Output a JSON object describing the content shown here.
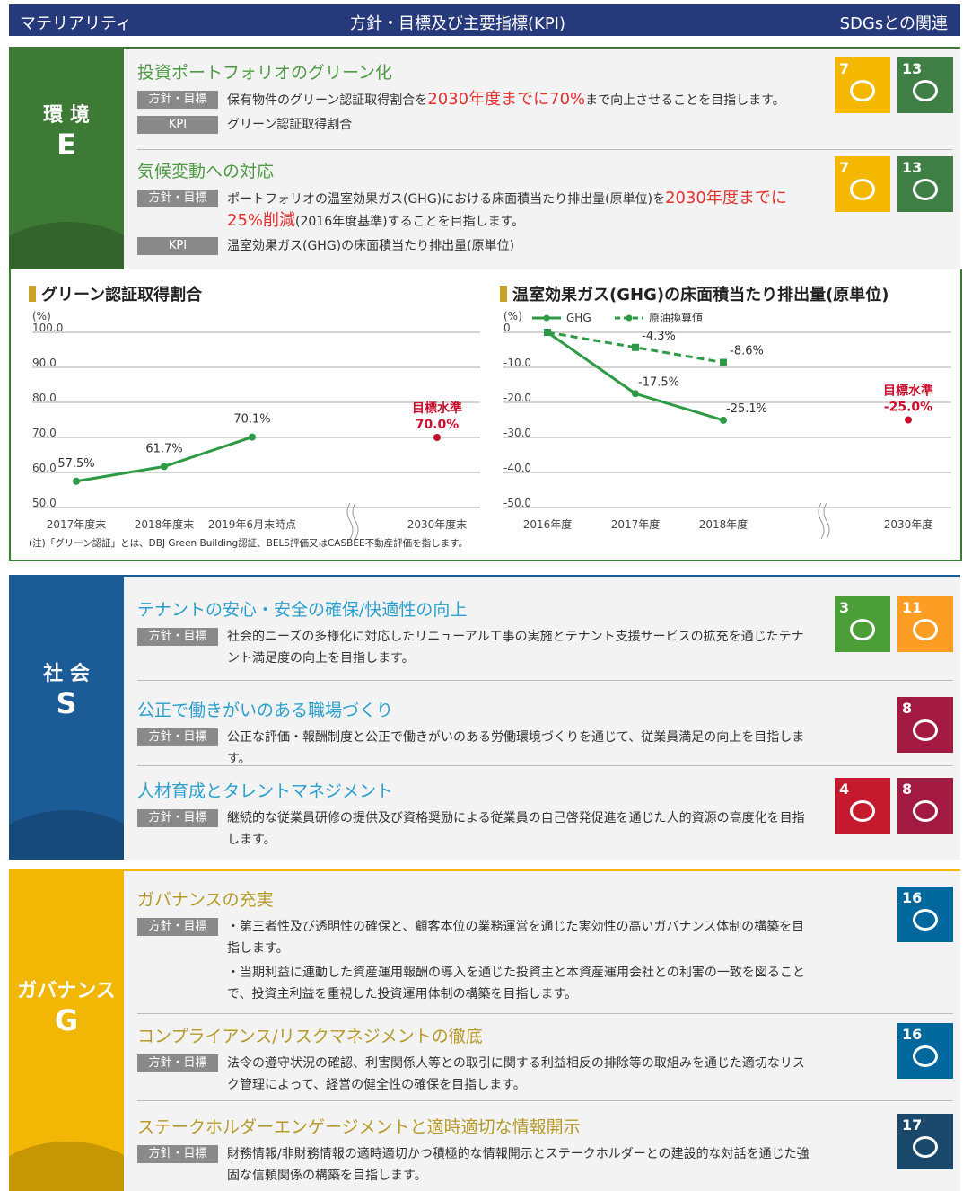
{
  "header": {
    "materiality": "マテリアリティ",
    "policy": "方針・目標及び主要指標(KPI)",
    "sdgs": "SDGsとの関連"
  },
  "sections": [
    {
      "label": "環 境",
      "letter": "E",
      "color": "#3d7a35",
      "title_color": "#4f9a45",
      "items": [
        {
          "title": "投資ポートフォリオのグリーン化",
          "rows": [
            {
              "tag": "方針・目標",
              "parts": [
                {
                  "text": "保有物件のグリーン認証取得割合を"
                },
                {
                  "text": "2030年度までに70%",
                  "em": true
                },
                {
                  "text": "まで向上させることを目指します。"
                }
              ]
            },
            {
              "tag": "KPI",
              "parts": [
                {
                  "text": "グリーン認証取得割合"
                }
              ]
            }
          ],
          "sdgs": [
            {
              "number": 7,
              "color": "#f5b800"
            },
            {
              "number": 13,
              "color": "#3f7e44"
            }
          ]
        },
        {
          "title": "気候変動への対応",
          "rows": [
            {
              "tag": "方針・目標",
              "parts": [
                {
                  "text": "ポートフォリオの温室効果ガス(GHG)における床面積当たり排出量(原単位)を"
                },
                {
                  "text": "2030年度までに25%削減",
                  "em": true
                },
                {
                  "text": "(2016年度基準)することを目指します。"
                }
              ]
            },
            {
              "tag": "KPI",
              "parts": [
                {
                  "text": "温室効果ガス(GHG)の床面積当たり排出量(原単位)"
                }
              ]
            }
          ],
          "sdgs": [
            {
              "number": 7,
              "color": "#f5b800"
            },
            {
              "number": 13,
              "color": "#3f7e44"
            }
          ]
        }
      ]
    },
    {
      "label": "社 会",
      "letter": "S",
      "color": "#1b5b96",
      "title_color": "#2b9fcc",
      "items": [
        {
          "title": "テナントの安心・安全の確保/快適性の向上",
          "rows": [
            {
              "tag": "方針・目標",
              "parts": [
                {
                  "text": "社会的ニーズの多様化に対応したリニューアル工事の実施とテナント支援サービスの拡充を通じたテナント満足度の向上を目指します。"
                }
              ]
            }
          ],
          "sdgs": [
            {
              "number": 3,
              "color": "#4c9f38"
            },
            {
              "number": 11,
              "color": "#fd9d24"
            }
          ]
        },
        {
          "title": "公正で働きがいのある職場づくり",
          "rows": [
            {
              "tag": "方針・目標",
              "parts": [
                {
                  "text": "公正な評価・報酬制度と公正で働きがいのある労働環境づくりを通じて、従業員満足の向上を目指します。"
                }
              ]
            }
          ],
          "sdgs": [
            {
              "number": 8,
              "color": "#a21942"
            }
          ]
        },
        {
          "title": "人材育成とタレントマネジメント",
          "rows": [
            {
              "tag": "方針・目標",
              "parts": [
                {
                  "text": "継続的な従業員研修の提供及び資格奨励による従業員の自己啓発促進を通じた人的資源の高度化を目指します。"
                }
              ]
            }
          ],
          "sdgs": [
            {
              "number": 4,
              "color": "#c5192d"
            },
            {
              "number": 8,
              "color": "#a21942"
            }
          ]
        }
      ]
    },
    {
      "label": "ガバナンス",
      "letter": "G",
      "color": "#f2b705",
      "title_color": "#b59a2a",
      "items": [
        {
          "title": "ガバナンスの充実",
          "rows": [
            {
              "tag": "方針・目標",
              "parts": [
                {
                  "text": "・第三者性及び透明性の確保と、顧客本位の業務運営を通じた実効性の高いガバナンス体制の構築を目指します。"
                }
              ]
            },
            {
              "parts": [
                {
                  "text": "・当期利益に連動した資産運用報酬の導入を通じた投資主と本資産運用会社との利害の一致を図ることで、投資主利益を重視した投資運用体制の構築を目指します。"
                }
              ]
            }
          ],
          "sdgs": [
            {
              "number": 16,
              "color": "#00689d"
            }
          ]
        },
        {
          "title": "コンプライアンス/リスクマネジメントの徹底",
          "rows": [
            {
              "tag": "方針・目標",
              "parts": [
                {
                  "text": "法令の遵守状況の確認、利害関係人等との取引に関する利益相反の排除等の取組みを通じた適切なリスク管理によって、経営の健全性の確保を目指します。"
                }
              ]
            }
          ],
          "sdgs": [
            {
              "number": 16,
              "color": "#00689d"
            }
          ]
        },
        {
          "title": "ステークホルダーエンゲージメントと適時適切な情報開示",
          "rows": [
            {
              "tag": "方針・目標",
              "parts": [
                {
                  "text": "財務情報/非財務情報の適時適切かつ積極的な情報開示とステークホルダーとの建設的な対話を通じた強固な信頼関係の構築を目指します。"
                }
              ]
            }
          ],
          "sdgs": [
            {
              "number": 17,
              "color": "#19486a"
            }
          ]
        }
      ]
    }
  ],
  "chart_data": [
    {
      "type": "line",
      "title": "グリーン認証取得割合",
      "y_unit": "(%)",
      "categories": [
        "2017年度末",
        "2018年度末",
        "2019年6月末時点",
        "2030年度末"
      ],
      "series": [
        {
          "color": "#2e9a45",
          "values": [
            57.5,
            61.7,
            70.1,
            null
          ],
          "value_labels": [
            "57.5%",
            "61.7%",
            "70.1%",
            null
          ]
        }
      ],
      "target": {
        "label": "目標水準",
        "value": 70,
        "value_label": "70.0%",
        "color": "#c8102e"
      },
      "ylim": [
        50,
        100
      ],
      "yticks": [
        {
          "value": 50,
          "label": "50.0"
        },
        {
          "value": 60,
          "label": "60.0"
        },
        {
          "value": 70,
          "label": "70.0"
        },
        {
          "value": 80,
          "label": "80.0"
        },
        {
          "value": 90,
          "label": "90.0"
        },
        {
          "value": 100,
          "label": "100.0"
        }
      ],
      "grid": true,
      "note": "(注)「グリーン認証」とは、DBJ Green Building認証、BELS評価又はCASBEE不動産評価を指します。"
    },
    {
      "type": "line",
      "title": "温室効果ガス(GHG)の床面積当たり排出量(原単位)",
      "y_unit": "(%)",
      "categories": [
        "2016年度",
        "2017年度",
        "2018年度",
        "2030年度"
      ],
      "series": [
        {
          "name": "GHG",
          "color": "#2e9a45",
          "dashed": false,
          "values": [
            0,
            -17.5,
            -25.1,
            null
          ],
          "value_labels": [
            null,
            "-17.5%",
            "-25.1%",
            null
          ]
        },
        {
          "name": "原油換算値",
          "color": "#2e9a45",
          "dashed": true,
          "values": [
            0,
            -4.3,
            -8.6,
            null
          ],
          "value_labels": [
            null,
            "-4.3%",
            "-8.6%",
            null
          ]
        }
      ],
      "target": {
        "label": "目標水準",
        "value": -25,
        "value_label": "-25.0%",
        "color": "#c8102e"
      },
      "ylim": [
        -50,
        0
      ],
      "yticks": [
        {
          "value": -50,
          "label": "-50.0"
        },
        {
          "value": -40,
          "label": "-40.0"
        },
        {
          "value": -30,
          "label": "-30.0"
        },
        {
          "value": -20,
          "label": "-20.0"
        },
        {
          "value": -10,
          "label": "-10.0"
        },
        0
      ],
      "grid": true
    }
  ]
}
